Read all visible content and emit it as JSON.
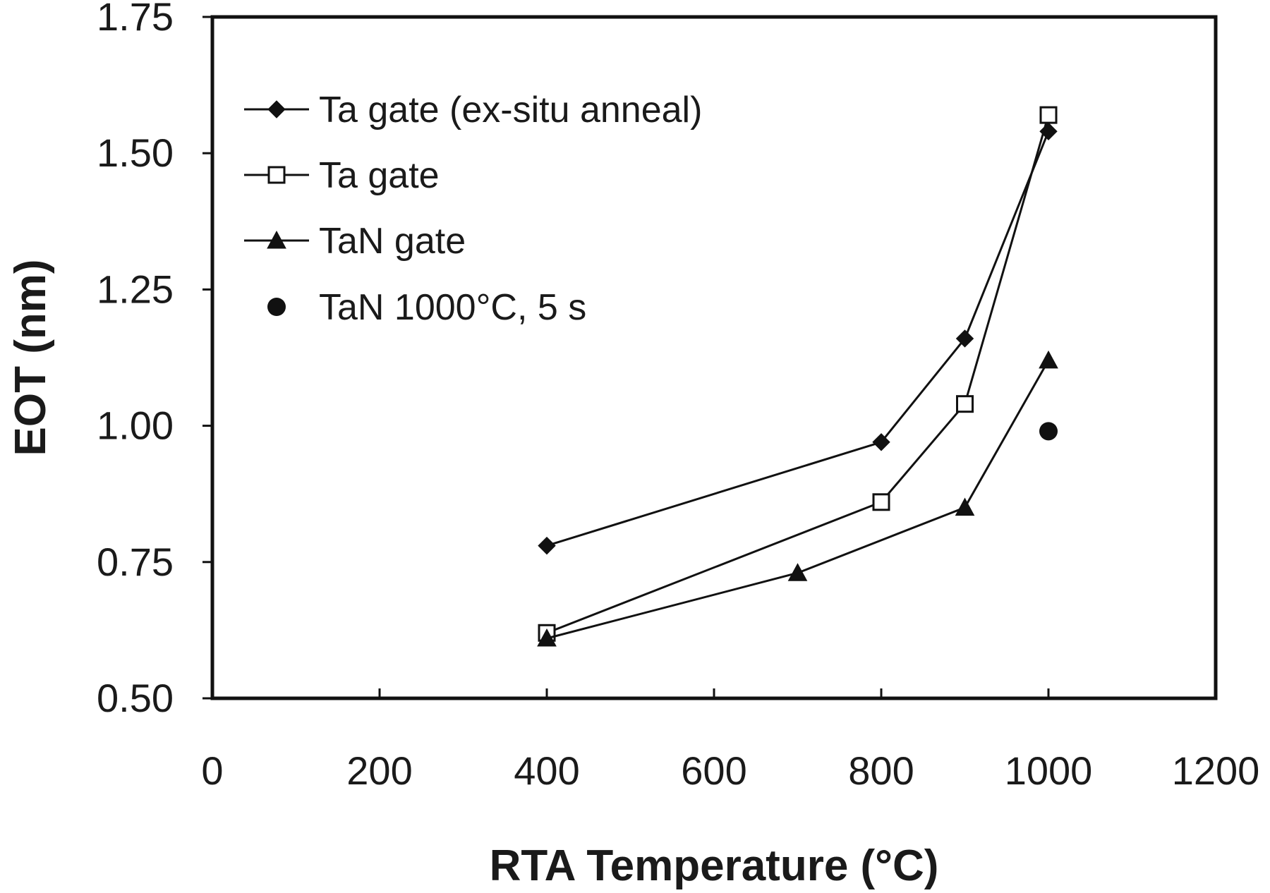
{
  "chart_data": {
    "type": "line",
    "title": "",
    "xlabel": "RTA Temperature (°C)",
    "ylabel": "EOT (nm)",
    "xlim": [
      0,
      1200
    ],
    "ylim": [
      0.5,
      1.75
    ],
    "xticks": [
      0,
      200,
      400,
      600,
      800,
      1000,
      1200
    ],
    "yticks": [
      0.5,
      0.75,
      1.0,
      1.25,
      1.5,
      1.75
    ],
    "xtick_labels": [
      "0",
      "200",
      "400",
      "600",
      "800",
      "1000",
      "1200"
    ],
    "ytick_labels": [
      "0.50",
      "0.75",
      "1.00",
      "1.25",
      "1.50",
      "1.75"
    ],
    "grid": false,
    "legend_position": "top-left",
    "series": [
      {
        "name": "Ta gate (ex-situ anneal)",
        "marker": "diamond-filled",
        "line": true,
        "x": [
          400,
          800,
          900,
          1000
        ],
        "y": [
          0.78,
          0.97,
          1.16,
          1.54
        ]
      },
      {
        "name": "Ta gate",
        "marker": "square-open",
        "line": true,
        "x": [
          400,
          800,
          900,
          1000
        ],
        "y": [
          0.62,
          0.86,
          1.04,
          1.57
        ]
      },
      {
        "name": "TaN gate",
        "marker": "triangle-filled",
        "line": true,
        "x": [
          400,
          700,
          900,
          1000
        ],
        "y": [
          0.61,
          0.73,
          0.85,
          1.12
        ]
      },
      {
        "name": "TaN 1000°C, 5 s",
        "marker": "circle-filled",
        "line": false,
        "x": [
          1000
        ],
        "y": [
          0.99
        ]
      }
    ]
  }
}
